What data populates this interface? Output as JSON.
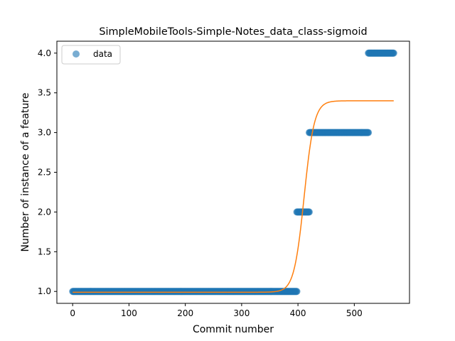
{
  "chart_data": {
    "type": "scatter",
    "title": "SimpleMobileTools-Simple-Notes_data_class-sigmoid",
    "xlabel": "Commit number",
    "ylabel": "Number of instance of a feature",
    "xlim": [
      -28,
      598
    ],
    "ylim": [
      0.85,
      4.15
    ],
    "xticks": [
      0,
      100,
      200,
      300,
      400,
      500
    ],
    "yticks": [
      1.0,
      1.5,
      2.0,
      2.5,
      3.0,
      3.5,
      4.0
    ],
    "xtick_labels": [
      "0",
      "100",
      "200",
      "300",
      "400",
      "500"
    ],
    "ytick_labels": [
      "1.0",
      "1.5",
      "2.0",
      "2.5",
      "3.0",
      "3.5",
      "4.0"
    ],
    "grid": false,
    "legend": {
      "position": "top-left",
      "entries": [
        "data"
      ]
    },
    "series": [
      {
        "name": "data",
        "kind": "scatter",
        "color": "#1f77b4",
        "segments": [
          {
            "x_start": 0,
            "x_end": 398,
            "y": 1.0
          },
          {
            "x_start": 398,
            "x_end": 420,
            "y": 2.0
          },
          {
            "x_start": 420,
            "x_end": 525,
            "y": 3.0
          },
          {
            "x_start": 525,
            "x_end": 570,
            "y": 4.0
          }
        ]
      },
      {
        "kind": "line",
        "color": "#ff7f0e",
        "model": "sigmoid",
        "params": {
          "lower": 0.99,
          "upper": 3.4,
          "midpoint": 411,
          "scale": 9
        },
        "x_range": [
          0,
          570
        ]
      }
    ]
  }
}
